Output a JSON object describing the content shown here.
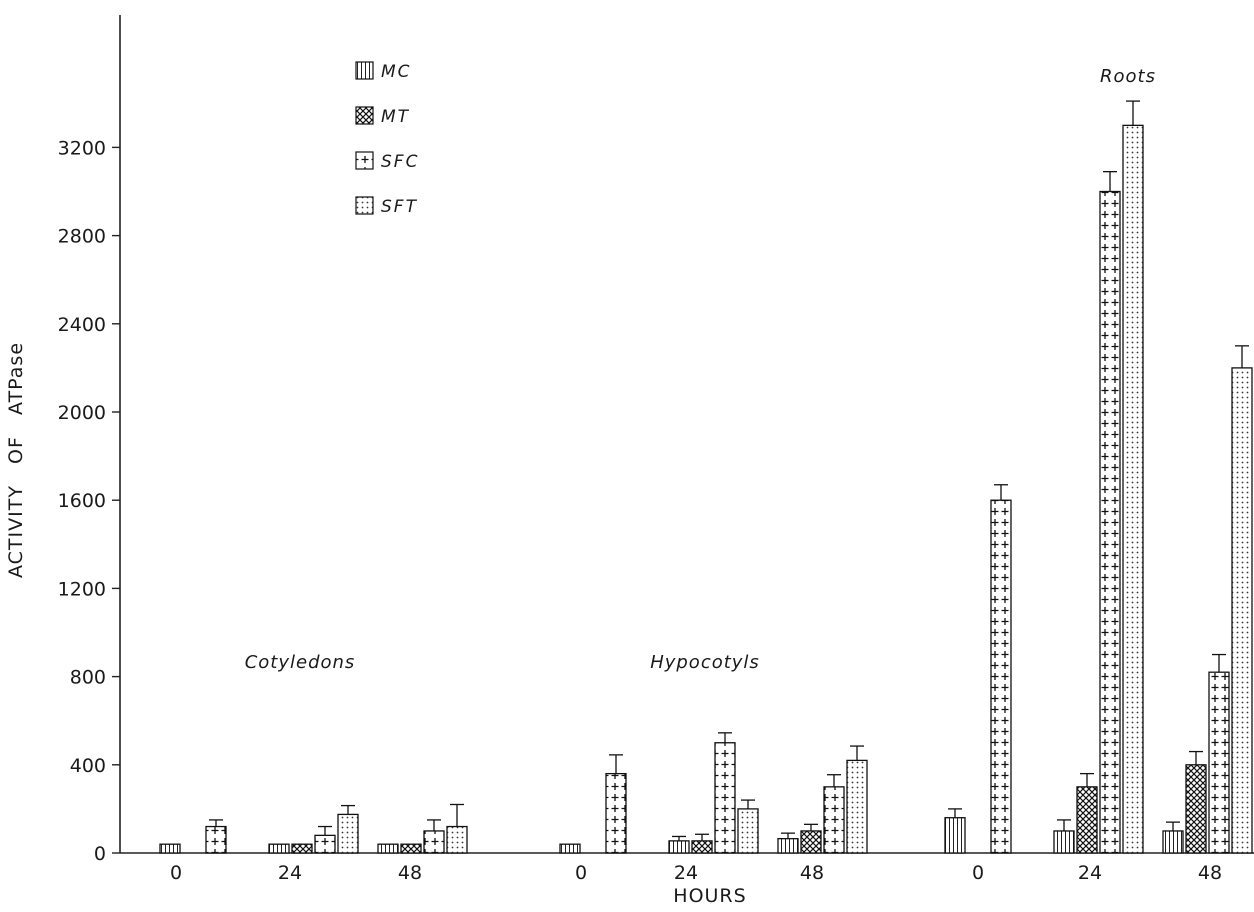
{
  "chart_data": {
    "type": "bar",
    "title": "",
    "xlabel": "HOURS",
    "ylabel": "ACTIVITY   OF   ATPase",
    "ylim": [
      0,
      3600
    ],
    "yticks": [
      0,
      400,
      800,
      1200,
      1600,
      2000,
      2400,
      2800,
      3200
    ],
    "legend_position": "top-left",
    "series": [
      {
        "name": "MC",
        "pattern": "vertical-lines"
      },
      {
        "name": "MT",
        "pattern": "cross-hatch"
      },
      {
        "name": "SFC",
        "pattern": "plus-signs"
      },
      {
        "name": "SFT",
        "pattern": "dots"
      }
    ],
    "groups": [
      {
        "label": "Cotyledons",
        "timepoints": [
          {
            "x": "0",
            "values": [
              40,
              null,
              120,
              null
            ],
            "errors": [
              null,
              null,
              30,
              null
            ]
          },
          {
            "x": "24",
            "values": [
              40,
              40,
              80,
              175
            ],
            "errors": [
              null,
              null,
              40,
              40
            ]
          },
          {
            "x": "48",
            "values": [
              40,
              40,
              100,
              120
            ],
            "errors": [
              null,
              null,
              50,
              100
            ]
          }
        ]
      },
      {
        "label": "Hypocotyls",
        "timepoints": [
          {
            "x": "0",
            "values": [
              40,
              null,
              360,
              null
            ],
            "errors": [
              null,
              null,
              85,
              null
            ]
          },
          {
            "x": "24",
            "values": [
              55,
              55,
              500,
              200
            ],
            "errors": [
              20,
              30,
              45,
              40
            ]
          },
          {
            "x": "48",
            "values": [
              65,
              100,
              300,
              420
            ],
            "errors": [
              25,
              30,
              55,
              65
            ]
          }
        ]
      },
      {
        "label": "Roots",
        "timepoints": [
          {
            "x": "0",
            "values": [
              160,
              null,
              1600,
              null
            ],
            "errors": [
              40,
              null,
              70,
              null
            ]
          },
          {
            "x": "24",
            "values": [
              100,
              300,
              3000,
              3300
            ],
            "errors": [
              50,
              60,
              90,
              110
            ]
          },
          {
            "x": "48",
            "values": [
              100,
              400,
              820,
              2200
            ],
            "errors": [
              40,
              60,
              80,
              100
            ]
          }
        ]
      }
    ]
  }
}
